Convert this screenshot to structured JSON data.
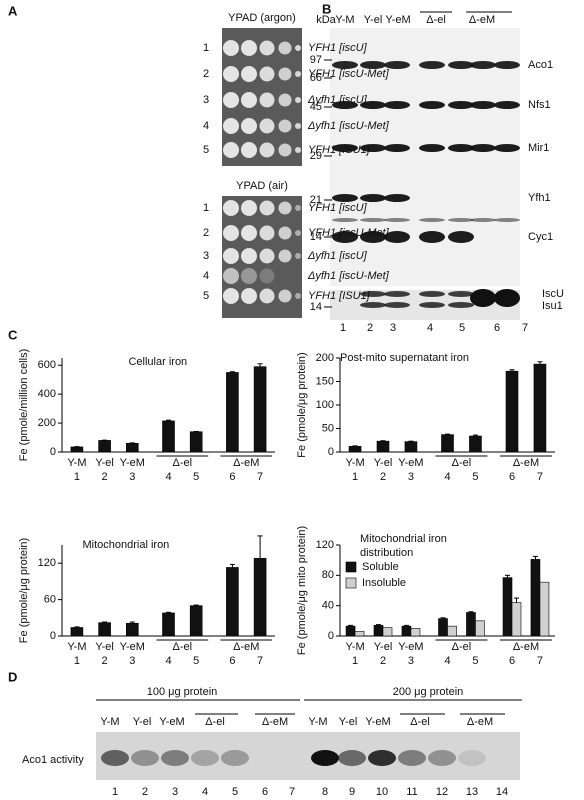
{
  "panel_labels": [
    "A",
    "B",
    "C",
    "D"
  ],
  "panel_a": {
    "plates": [
      {
        "title": "YPAD (argon)",
        "rows": [
          {
            "number": "1",
            "strain": "YFH1 [iscU]"
          },
          {
            "number": "2",
            "strain": "YFH1 [iscU-Met]"
          },
          {
            "number": "3",
            "strain": "Δyfh1 [iscU]"
          },
          {
            "number": "4",
            "strain": "Δyfh1 [iscU-Met]"
          },
          {
            "number": "5",
            "strain": "YFH1 [ISU1]"
          }
        ]
      },
      {
        "title": "YPAD (air)",
        "rows": [
          {
            "number": "1",
            "strain": "YFH1 [iscU]"
          },
          {
            "number": "2",
            "strain": "YFH1 [iscU-Met]"
          },
          {
            "number": "3",
            "strain": "Δyfh1 [iscU]"
          },
          {
            "number": "4",
            "strain": "Δyfh1 [iscU-Met]"
          },
          {
            "number": "5",
            "strain": "YFH1 [ISU1]"
          }
        ]
      }
    ]
  },
  "panel_b": {
    "mw_unit": "kDa",
    "mw_markers": [
      "97",
      "66",
      "45",
      "29",
      "21",
      "14"
    ],
    "lower_marker": "14",
    "lane_headers": [
      "Y-M",
      "Y-el",
      "Y-eM",
      "Δ-el",
      "Δ-eM"
    ],
    "proteins": [
      "Aco1",
      "Nfs1",
      "Mir1",
      "Yfh1",
      "Cyc1"
    ],
    "lower_proteins": [
      "IscU",
      "Isu1"
    ],
    "lane_numbers": [
      "1",
      "2",
      "3",
      "4",
      "5",
      "6",
      "7"
    ]
  },
  "panel_c": {
    "charts": [
      {
        "type": "bar",
        "title": "Cellular iron",
        "y_label": "Fe (pmole/million cells)",
        "categories": [
          "1",
          "2",
          "3",
          "4",
          "5",
          "6",
          "7"
        ],
        "category_groups": [
          "Y-M",
          "Y-el",
          "Y-eM",
          "Δ-el",
          "Δ-eM"
        ],
        "ylim": [
          0,
          650
        ],
        "yticks": [
          0,
          200,
          400,
          600
        ],
        "series": [
          {
            "color": "#111111",
            "values": [
              35,
              80,
              60,
              215,
              140,
              550,
              590
            ],
            "errors": [
              2,
              2,
              3,
              5,
              2,
              5,
              20
            ]
          }
        ]
      },
      {
        "type": "bar",
        "title": "Post-mito supernatant iron",
        "y_label": "Fe (pmole/μg protein)",
        "categories": [
          "1",
          "2",
          "3",
          "4",
          "5",
          "6",
          "7"
        ],
        "category_groups": [
          "Y-M",
          "Y-el",
          "Y-eM",
          "Δ-el",
          "Δ-eM"
        ],
        "ylim": [
          0,
          200
        ],
        "yticks": [
          0,
          50,
          100,
          150,
          200
        ],
        "series": [
          {
            "color": "#111111",
            "values": [
              12,
              23,
              22,
              37,
              34,
              172,
              187
            ],
            "errors": [
              1,
              1,
              1,
              1,
              2,
              3,
              5
            ]
          }
        ]
      },
      {
        "type": "bar",
        "title": "Mitochondrial iron",
        "y_label": "Fe (pmole/μg protein)",
        "categories": [
          "1",
          "2",
          "3",
          "4",
          "5",
          "6",
          "7"
        ],
        "category_groups": [
          "Y-M",
          "Y-el",
          "Y-eM",
          "Δ-el",
          "Δ-eM"
        ],
        "ylim": [
          0,
          150
        ],
        "yticks": [
          0,
          60,
          120
        ],
        "series": [
          {
            "color": "#111111",
            "values": [
              14,
              22,
              21,
              38,
              50,
              113,
              128
            ],
            "errors": [
              1,
              1,
              2,
              1,
              1,
              5,
              37
            ]
          }
        ]
      },
      {
        "type": "bar",
        "title": [
          "Mitochondrial iron",
          "distribution"
        ],
        "y_label": "Fe (pmole/μg mito protein)",
        "categories": [
          "1",
          "2",
          "3",
          "4",
          "5",
          "6",
          "7"
        ],
        "category_groups": [
          "Y-M",
          "Y-el",
          "Y-eM",
          "Δ-el",
          "Δ-eM"
        ],
        "ylim": [
          0,
          120
        ],
        "yticks": [
          0,
          40,
          80,
          120
        ],
        "series": [
          {
            "name": "Soluble",
            "color": "#111111",
            "values": [
              13,
              14,
              13,
              23,
              31,
              77,
              101
            ],
            "errors": [
              1,
              1,
              1,
              1,
              1,
              3,
              4
            ]
          },
          {
            "name": "Insoluble",
            "color": "#d0d0d0",
            "values": [
              6,
              11,
              10,
              13,
              20,
              44,
              71
            ],
            "errors": [
              0,
              0,
              0,
              0,
              0,
              6,
              0
            ]
          }
        ]
      }
    ]
  },
  "panel_d": {
    "groups": [
      "100 μg protein",
      "200 μg protein"
    ],
    "lane_headers": [
      "Y-M",
      "Y-el",
      "Y-eM",
      "Δ-el",
      "Δ-eM",
      "Y-M",
      "Y-el",
      "Y-eM",
      "Δ-el",
      "Δ-eM"
    ],
    "row_label": "Aco1 activity",
    "lane_numbers": [
      "1",
      "2",
      "3",
      "4",
      "5",
      "6",
      "7",
      "8",
      "9",
      "10",
      "11",
      "12",
      "13",
      "14"
    ]
  }
}
